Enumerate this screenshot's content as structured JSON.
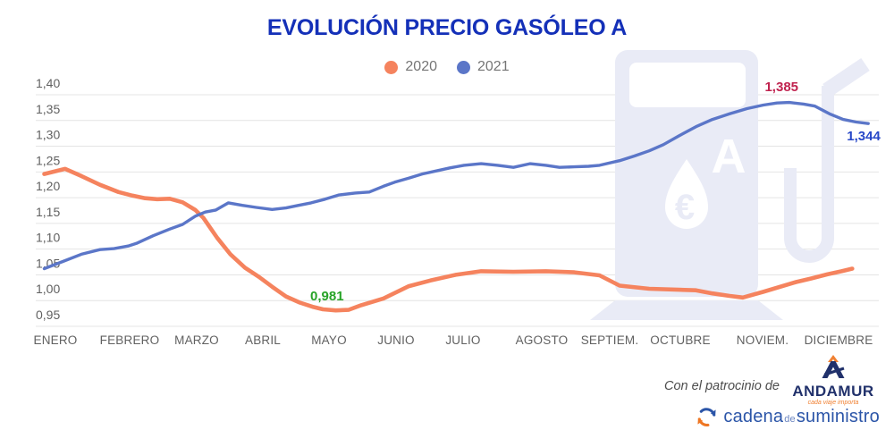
{
  "title": "EVOLUCIÓN PRECIO GASÓLEO A",
  "colors": {
    "title_blue": "#1430B8",
    "series_2020": "#F5835E",
    "series_2021": "#5B76C8",
    "grid": "#E4E4E4",
    "axis_text": "#616161",
    "legend_text": "#757575",
    "annotation_green": "#27A327",
    "annotation_red": "#C0234F",
    "annotation_blue": "#2848C8",
    "watermark": "#E9EBF6",
    "andamur_navy": "#21316B",
    "andamur_orange": "#F08032",
    "cadena_blue": "#2B55A8",
    "cadena_de": "#6B85C0",
    "cadena_orange": "#EE7623",
    "patrocinio_text": "#4D4D4D"
  },
  "chart_data": {
    "type": "line",
    "title": "EVOLUCIÓN PRECIO GASÓLEO A",
    "xlabel": "",
    "ylabel": "",
    "ylim": [
      0.95,
      1.4
    ],
    "grid": true,
    "legend_position": "top-center",
    "x_unit": "month index (0 = ENERO … 11 = DICIEMBRE), weekly sub-samples",
    "categories": [
      "ENERO",
      "FEBRERO",
      "MARZO",
      "ABRIL",
      "MAYO",
      "JUNIO",
      "JULIO",
      "AGOSTO",
      "SEPTIEM.",
      "OCTUBRE",
      "NOVIEM.",
      "DICIEMBRE"
    ],
    "y_ticks": [
      {
        "label": "1,40",
        "value": 1.4
      },
      {
        "label": "1,35",
        "value": 1.35
      },
      {
        "label": "1,30",
        "value": 1.3
      },
      {
        "label": "1,25",
        "value": 1.25
      },
      {
        "label": "1,20",
        "value": 1.2
      },
      {
        "label": "1,15",
        "value": 1.15
      },
      {
        "label": "1,10",
        "value": 1.1
      },
      {
        "label": "1,05",
        "value": 1.05
      },
      {
        "label": "1,00",
        "value": 1.0
      },
      {
        "label": "0,95",
        "value": 0.95
      }
    ],
    "series": [
      {
        "name": "2020",
        "color": "#F5835E",
        "stroke_width": 4.6,
        "points": [
          [
            -0.15,
            1.246
          ],
          [
            0.13,
            1.256
          ],
          [
            0.35,
            1.242
          ],
          [
            0.6,
            1.225
          ],
          [
            0.85,
            1.211
          ],
          [
            1.04,
            1.204
          ],
          [
            1.23,
            1.199
          ],
          [
            1.41,
            1.197
          ],
          [
            1.6,
            1.198
          ],
          [
            1.79,
            1.191
          ],
          [
            1.98,
            1.176
          ],
          [
            2.1,
            1.161
          ],
          [
            2.31,
            1.122
          ],
          [
            2.51,
            1.09
          ],
          [
            2.73,
            1.064
          ],
          [
            2.94,
            1.046
          ],
          [
            3.14,
            1.027
          ],
          [
            3.35,
            1.008
          ],
          [
            3.56,
            0.996
          ],
          [
            3.75,
            0.988
          ],
          [
            3.91,
            0.983
          ],
          [
            4.1,
            0.981
          ],
          [
            4.29,
            0.982
          ],
          [
            4.48,
            0.991
          ],
          [
            4.81,
            1.004
          ],
          [
            5.19,
            1.028
          ],
          [
            5.51,
            1.039
          ],
          [
            5.89,
            1.05
          ],
          [
            6.23,
            1.057
          ],
          [
            6.64,
            1.056
          ],
          [
            7.06,
            1.057
          ],
          [
            7.48,
            1.055
          ],
          [
            7.85,
            1.049
          ],
          [
            8.14,
            1.029
          ],
          [
            8.56,
            1.023
          ],
          [
            8.98,
            1.021
          ],
          [
            9.19,
            1.02
          ],
          [
            9.39,
            1.014
          ],
          [
            9.6,
            1.009
          ],
          [
            9.76,
            1.006
          ],
          [
            10.01,
            1.017
          ],
          [
            10.44,
            1.036
          ],
          [
            10.64,
            1.043
          ],
          [
            10.85,
            1.051
          ],
          [
            11.04,
            1.057
          ],
          [
            11.18,
            1.062
          ]
        ]
      },
      {
        "name": "2021",
        "color": "#5B76C8",
        "stroke_width": 3.4,
        "points": [
          [
            -0.15,
            1.062
          ],
          [
            0.1,
            1.076
          ],
          [
            0.35,
            1.09
          ],
          [
            0.6,
            1.099
          ],
          [
            0.79,
            1.101
          ],
          [
            0.98,
            1.106
          ],
          [
            1.1,
            1.111
          ],
          [
            1.35,
            1.126
          ],
          [
            1.6,
            1.139
          ],
          [
            1.79,
            1.148
          ],
          [
            1.98,
            1.164
          ],
          [
            2.13,
            1.172
          ],
          [
            2.29,
            1.176
          ],
          [
            2.48,
            1.19
          ],
          [
            2.69,
            1.185
          ],
          [
            2.9,
            1.181
          ],
          [
            3.14,
            1.177
          ],
          [
            3.35,
            1.18
          ],
          [
            3.54,
            1.185
          ],
          [
            3.73,
            1.19
          ],
          [
            3.94,
            1.197
          ],
          [
            4.14,
            1.205
          ],
          [
            4.39,
            1.209
          ],
          [
            4.6,
            1.211
          ],
          [
            4.81,
            1.222
          ],
          [
            4.98,
            1.23
          ],
          [
            5.19,
            1.238
          ],
          [
            5.39,
            1.246
          ],
          [
            5.6,
            1.252
          ],
          [
            5.81,
            1.258
          ],
          [
            6.01,
            1.263
          ],
          [
            6.23,
            1.266
          ],
          [
            6.44,
            1.263
          ],
          [
            6.64,
            1.259
          ],
          [
            6.85,
            1.266
          ],
          [
            7.06,
            1.263
          ],
          [
            7.26,
            1.259
          ],
          [
            7.48,
            1.26
          ],
          [
            7.69,
            1.261
          ],
          [
            7.85,
            1.263
          ],
          [
            8.14,
            1.272
          ],
          [
            8.35,
            1.281
          ],
          [
            8.56,
            1.291
          ],
          [
            8.76,
            1.303
          ],
          [
            8.98,
            1.32
          ],
          [
            9.19,
            1.338
          ],
          [
            9.39,
            1.352
          ],
          [
            9.6,
            1.363
          ],
          [
            9.81,
            1.373
          ],
          [
            10.01,
            1.38
          ],
          [
            10.19,
            1.384
          ],
          [
            10.35,
            1.385
          ],
          [
            10.54,
            1.382
          ],
          [
            10.69,
            1.378
          ],
          [
            10.88,
            1.363
          ],
          [
            11.06,
            1.352
          ],
          [
            11.23,
            1.347
          ],
          [
            11.39,
            1.344
          ]
        ]
      }
    ],
    "annotations": [
      {
        "text": "0,981",
        "meaning": "2020 minimum",
        "color": "#27A327",
        "m": 3.97,
        "value": 1.009
      },
      {
        "text": "1,385",
        "meaning": "2021 maximum",
        "color": "#C0234F",
        "m": 10.25,
        "value": 1.416
      },
      {
        "text": "1,344",
        "meaning": "2021 last value",
        "color": "#2848C8",
        "m": 11.33,
        "value": 1.32
      }
    ]
  },
  "icons": {
    "watermark": "fuel-pump-icon",
    "cadena": "circular-arrows-icon",
    "andamur": "andamur-a-icon"
  },
  "footer": {
    "sponsor_prefix": "Con el patrocinio de",
    "andamur": {
      "name": "ANDAMUR",
      "tagline": "cada viaje importa"
    },
    "cadena": {
      "word1": "cadena",
      "word2": "de",
      "word3": "suministro"
    }
  }
}
